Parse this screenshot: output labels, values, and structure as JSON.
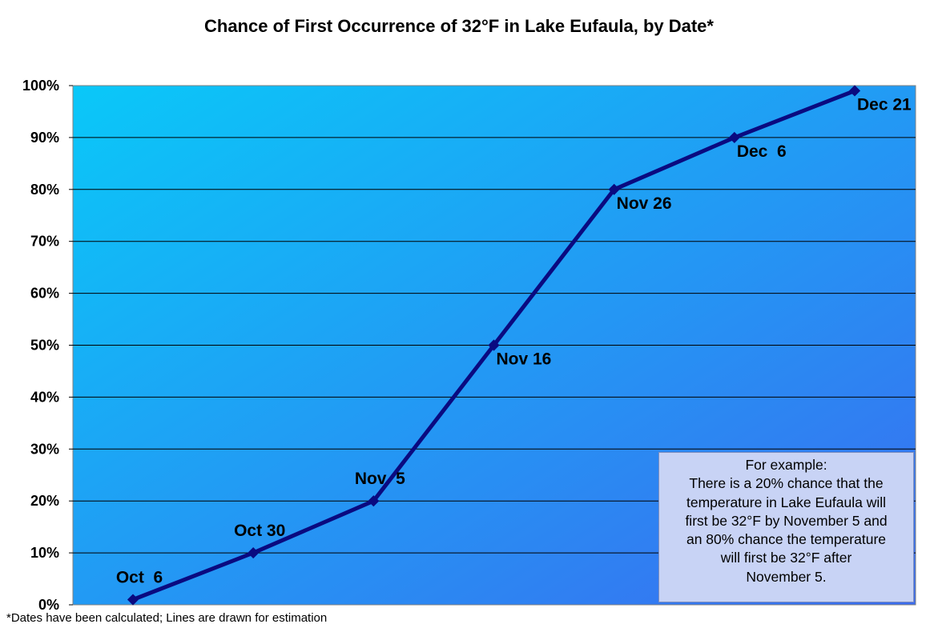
{
  "chart_data": {
    "type": "line",
    "title": "Chance of First Occurrence of 32°F in Lake Eufaula, by Date*",
    "xlabel": "",
    "ylabel": "",
    "ylim": [
      0,
      100
    ],
    "y_ticks": [
      "0%",
      "10%",
      "20%",
      "30%",
      "40%",
      "50%",
      "60%",
      "70%",
      "80%",
      "90%",
      "100%"
    ],
    "grid": true,
    "series": [
      {
        "points": [
          {
            "label": "Oct  6",
            "y": 1
          },
          {
            "label": "Oct 30",
            "y": 10
          },
          {
            "label": "Nov  5",
            "y": 20
          },
          {
            "label": "Nov 16",
            "y": 50
          },
          {
            "label": "Nov 26",
            "y": 80
          },
          {
            "label": "Dec  6",
            "y": 90
          },
          {
            "label": "Dec 21",
            "y": 99
          }
        ]
      }
    ],
    "annotation": [
      "For example:",
      "There is a 20% chance that the",
      "temperature in Lake Eufaula will",
      "first be 32°F by November 5 and",
      "an 80% chance the temperature",
      "will first be 32°F after",
      "November 5."
    ],
    "footnote": "*Dates have been calculated; Lines are drawn for estimation"
  },
  "colors": {
    "line": "#0a0a80",
    "plot_top_left": "#0ac8f8",
    "plot_bottom_right": "#3a6cf0",
    "note_box": "#c8d3f5"
  }
}
